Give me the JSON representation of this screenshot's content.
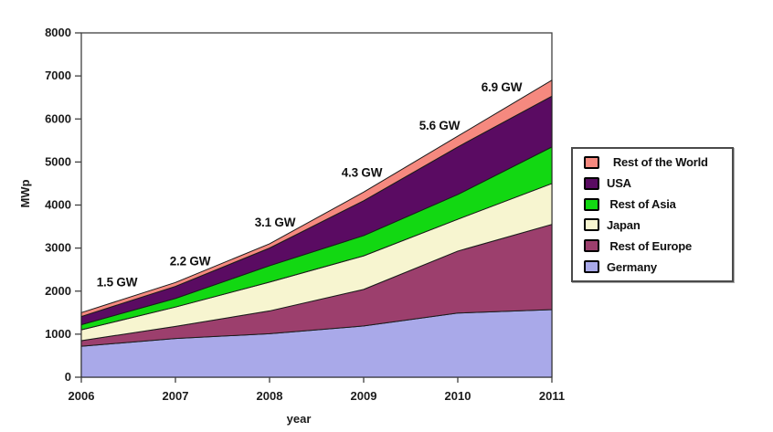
{
  "chart_data": {
    "type": "area",
    "stacked": true,
    "title": "",
    "xlabel": "year",
    "ylabel": "MWp",
    "grid": false,
    "legend_position": "right",
    "x": [
      2006,
      2007,
      2008,
      2009,
      2010,
      2011
    ],
    "x_ticks": [
      "2006",
      "2007",
      "2008",
      "2009",
      "2010",
      "2011"
    ],
    "y_ticks": [
      "0",
      "1000",
      "2000",
      "3000",
      "4000",
      "5000",
      "6000",
      "7000",
      "8000"
    ],
    "ylim": [
      0,
      8000
    ],
    "series": [
      {
        "name": "Germany",
        "color": "#A9A9E9",
        "values": [
          720,
          900,
          1010,
          1190,
          1490,
          1570
        ]
      },
      {
        "name": "Rest of Europe",
        "color": "#9C3F6D",
        "values": [
          130,
          280,
          530,
          850,
          1440,
          1980
        ]
      },
      {
        "name": "Japan",
        "color": "#F7F5D0",
        "values": [
          250,
          450,
          670,
          780,
          740,
          950
        ]
      },
      {
        "name": "Rest of Asia",
        "color": "#12D812",
        "values": [
          120,
          200,
          380,
          470,
          575,
          850
        ]
      },
      {
        "name": "USA",
        "color": "#5A0B62",
        "values": [
          190,
          280,
          410,
          810,
          1105,
          1180
        ]
      },
      {
        "name": "Rest of the World",
        "color": "#F5897F",
        "values": [
          90,
          90,
          100,
          200,
          250,
          370
        ]
      }
    ],
    "totals_gw": [
      1.5,
      2.2,
      3.1,
      4.3,
      5.6,
      6.9
    ],
    "annotations": [
      {
        "year": 2006,
        "label": "1.5 GW"
      },
      {
        "year": 2007,
        "label": "2.2 GW"
      },
      {
        "year": 2008,
        "label": "3.1 GW"
      },
      {
        "year": 2009,
        "label": "4.3 GW"
      },
      {
        "year": 2010,
        "label": "5.6 GW"
      },
      {
        "year": 2011,
        "label": "6.9 GW"
      }
    ]
  },
  "legend": {
    "items": [
      {
        "label": "  Rest of the World",
        "color": "#F5897F"
      },
      {
        "label": "USA",
        "color": "#5A0B62"
      },
      {
        "label": " Rest of Asia",
        "color": "#12D812"
      },
      {
        "label": "Japan",
        "color": "#F7F5D0"
      },
      {
        "label": " Rest of Europe",
        "color": "#9C3F6D"
      },
      {
        "label": "Germany",
        "color": "#A9A9E9"
      }
    ]
  }
}
